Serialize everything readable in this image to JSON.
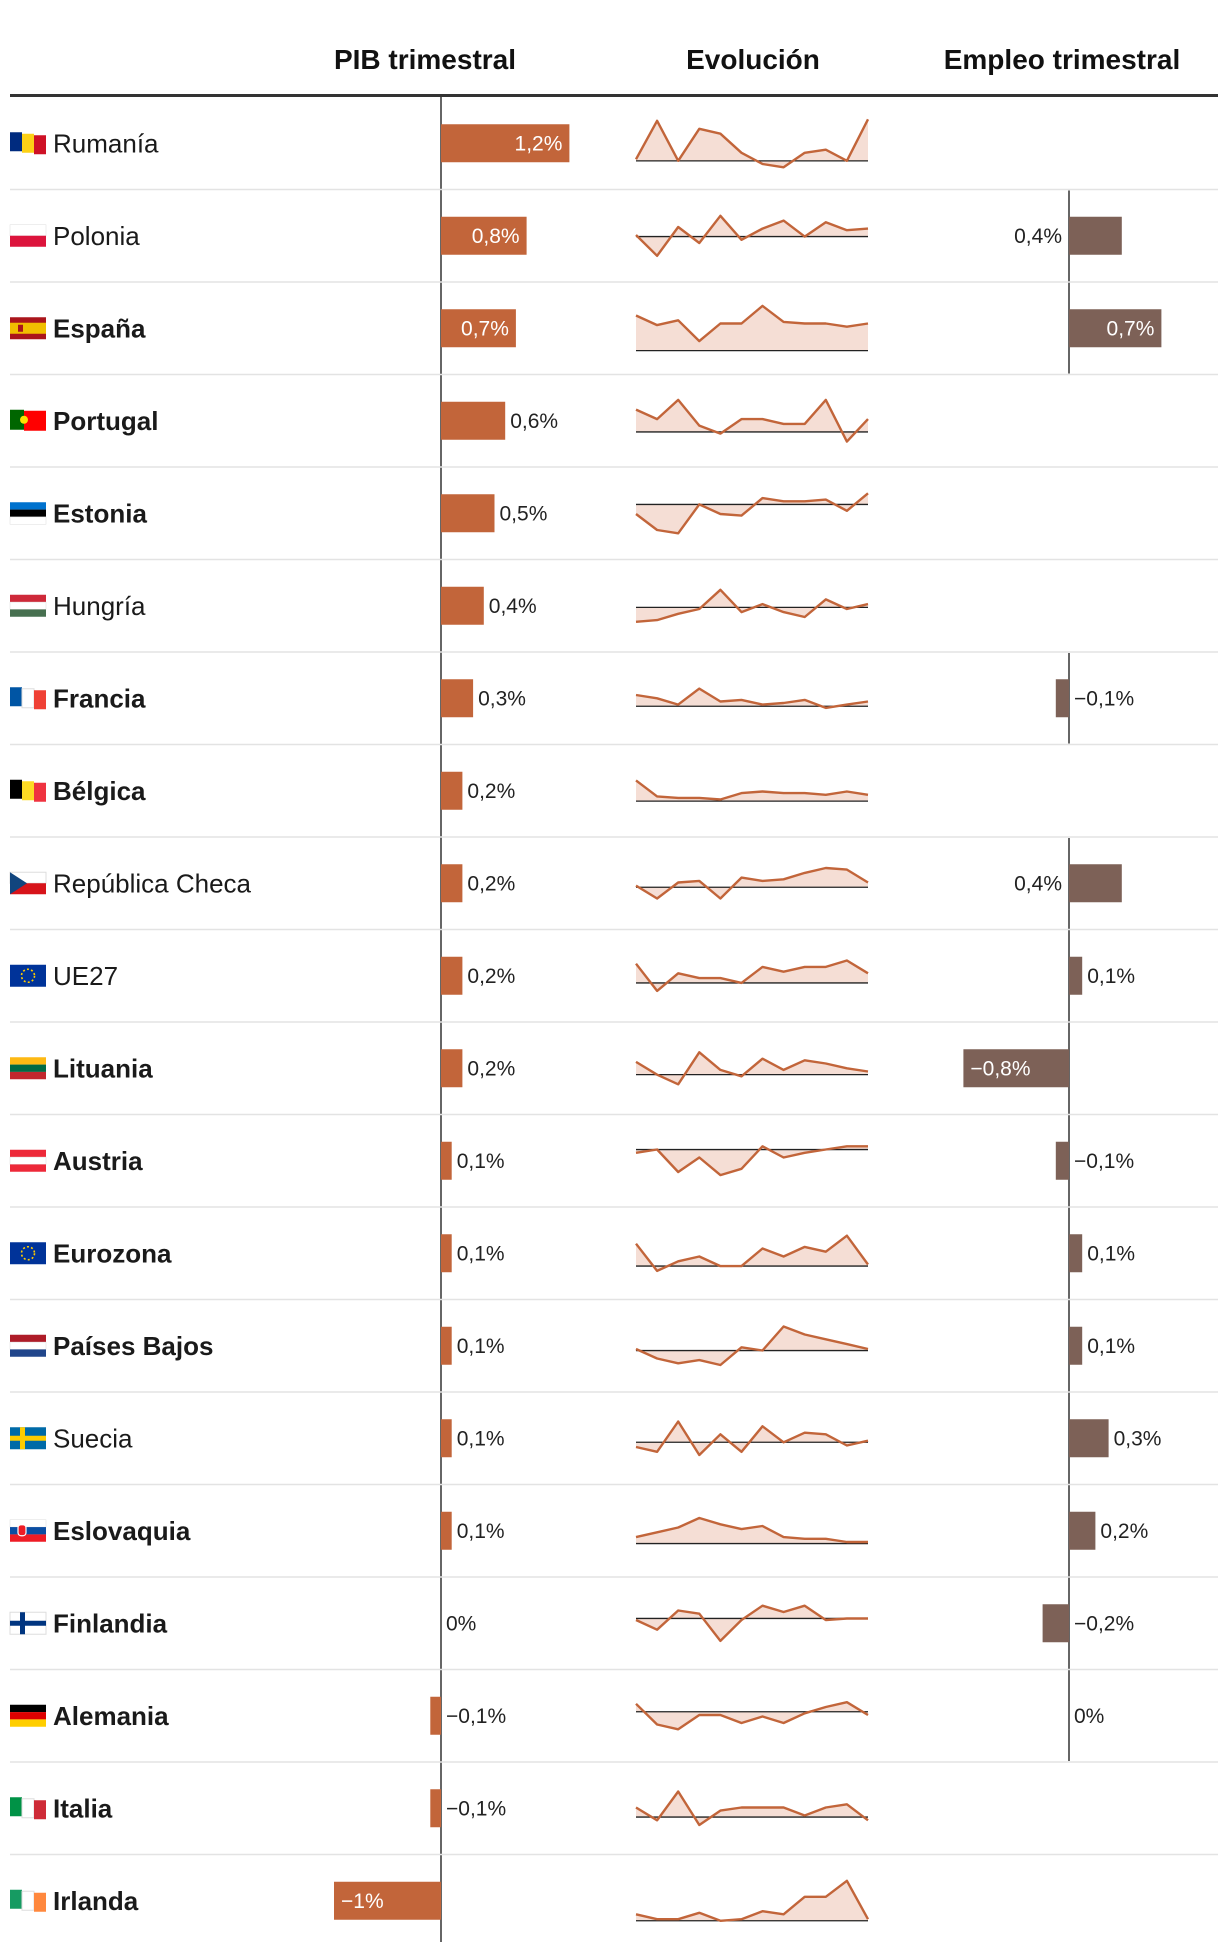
{
  "header": {
    "gdp": "PIB trimestral",
    "evolution": "Evolución",
    "employment": "Empleo trimestral"
  },
  "colors": {
    "gdp_bar": "#c2653a",
    "employment_bar": "#7d6157",
    "spark_line": "#c2653a",
    "spark_fill": "#f5ded5",
    "grid": "#e3e3e3",
    "axis": "#333333"
  },
  "chart_data": {
    "type": "table",
    "columns": [
      "PIB trimestral",
      "Evolución",
      "Empleo trimestral"
    ],
    "rows": [
      {
        "country": "Rumanía",
        "bold": false,
        "flag": [
          "#002B7F",
          "#FCD116",
          "#CE1126"
        ],
        "gdp": 1.2,
        "gdp_label": "1,2%",
        "emp": null,
        "emp_label": null,
        "spark": [
          0.1,
          2.5,
          0.0,
          2.0,
          1.7,
          0.5,
          -0.2,
          -0.4,
          0.5,
          0.7,
          0.0,
          2.6
        ]
      },
      {
        "country": "Polonia",
        "bold": false,
        "flag": [
          "#FFFFFF",
          "#DC143C"
        ],
        "gdp": 0.8,
        "gdp_label": "0,8%",
        "emp": 0.4,
        "emp_label": "0,4%",
        "spark": [
          0.1,
          -1.2,
          0.6,
          -0.4,
          1.3,
          -0.2,
          0.5,
          1.0,
          0.0,
          0.9,
          0.4,
          0.5
        ]
      },
      {
        "country": "España",
        "bold": true,
        "flag": [
          "#AA151B",
          "#F1BF00",
          "#AA151B"
        ],
        "gdp": 0.7,
        "gdp_label": "0,7%",
        "emp": 0.7,
        "emp_label": "0,7%",
        "spark": [
          2.2,
          1.6,
          1.9,
          0.6,
          1.7,
          1.7,
          2.8,
          1.8,
          1.7,
          1.7,
          1.5,
          1.7
        ]
      },
      {
        "country": "Portugal",
        "bold": true,
        "flag": [
          "#006600",
          "#FF0000"
        ],
        "gdp": 0.6,
        "gdp_label": "0,6%",
        "emp": null,
        "emp_label": null,
        "spark": [
          1.4,
          0.8,
          2.0,
          0.4,
          -0.1,
          0.8,
          0.8,
          0.5,
          0.5,
          2.0,
          -0.6,
          0.8
        ]
      },
      {
        "country": "Estonia",
        "bold": true,
        "flag": [
          "#0072CE",
          "#000000",
          "#FFFFFF"
        ],
        "gdp": 0.5,
        "gdp_label": "0,5%",
        "emp": null,
        "emp_label": null,
        "spark": [
          -0.6,
          -1.6,
          -1.8,
          0.0,
          -0.6,
          -0.7,
          0.4,
          0.2,
          0.2,
          0.3,
          -0.4,
          0.7
        ]
      },
      {
        "country": "Hungría",
        "bold": false,
        "flag": [
          "#CE2939",
          "#FFFFFF",
          "#477050"
        ],
        "gdp": 0.4,
        "gdp_label": "0,4%",
        "emp": null,
        "emp_label": null,
        "spark": [
          -0.9,
          -0.8,
          -0.4,
          -0.1,
          1.1,
          -0.3,
          0.2,
          -0.3,
          -0.6,
          0.5,
          -0.1,
          0.2
        ]
      },
      {
        "country": "Francia",
        "bold": true,
        "flag": [
          "#0055A4",
          "#FFFFFF",
          "#EF4135"
        ],
        "gdp": 0.3,
        "gdp_label": "0,3%",
        "emp": -0.1,
        "emp_label": "−0,1%",
        "spark": [
          0.7,
          0.5,
          0.1,
          1.1,
          0.3,
          0.4,
          0.1,
          0.2,
          0.4,
          -0.1,
          0.1,
          0.3
        ]
      },
      {
        "country": "Bélgica",
        "bold": true,
        "flag": [
          "#000000",
          "#FDDA24",
          "#EF3340"
        ],
        "gdp": 0.2,
        "gdp_label": "0,2%",
        "emp": null,
        "emp_label": null,
        "spark": [
          1.3,
          0.3,
          0.2,
          0.2,
          0.1,
          0.5,
          0.6,
          0.5,
          0.5,
          0.4,
          0.6,
          0.4
        ]
      },
      {
        "country": "República Checa",
        "bold": false,
        "flag": [
          "#FFFFFF",
          "#D7141A",
          "#11457E"
        ],
        "gdp": 0.2,
        "gdp_label": "0,2%",
        "emp": 0.4,
        "emp_label": "0,4%",
        "spark": [
          0.1,
          -0.7,
          0.3,
          0.4,
          -0.7,
          0.6,
          0.4,
          0.5,
          0.9,
          1.2,
          1.1,
          0.3
        ]
      },
      {
        "country": "UE27",
        "bold": false,
        "flag": [
          "#003399",
          "#FFCC00"
        ],
        "gdp": 0.2,
        "gdp_label": "0,2%",
        "emp": 0.1,
        "emp_label": "0,1%",
        "spark": [
          1.2,
          -0.5,
          0.6,
          0.3,
          0.3,
          0.0,
          1.0,
          0.7,
          1.0,
          1.0,
          1.4,
          0.6
        ]
      },
      {
        "country": "Lituania",
        "bold": true,
        "flag": [
          "#FDB913",
          "#006A44",
          "#C1272D"
        ],
        "gdp": 0.2,
        "gdp_label": "0,2%",
        "emp": -0.8,
        "emp_label": "−0,8%",
        "spark": [
          0.8,
          0.0,
          -0.6,
          1.4,
          0.3,
          -0.1,
          1.0,
          0.3,
          0.9,
          0.7,
          0.4,
          0.2
        ]
      },
      {
        "country": "Austria",
        "bold": true,
        "flag": [
          "#ED2939",
          "#FFFFFF",
          "#ED2939"
        ],
        "gdp": 0.1,
        "gdp_label": "0,1%",
        "emp": -0.1,
        "emp_label": "−0,1%",
        "spark": [
          -0.2,
          0.0,
          -1.4,
          -0.5,
          -1.6,
          -1.2,
          0.2,
          -0.5,
          -0.2,
          0.0,
          0.2,
          0.2
        ]
      },
      {
        "country": "Eurozona",
        "bold": true,
        "flag": [
          "#003399",
          "#FFCC00"
        ],
        "gdp": 0.1,
        "gdp_label": "0,1%",
        "emp": 0.1,
        "emp_label": "0,1%",
        "spark": [
          1.4,
          -0.3,
          0.3,
          0.6,
          0.0,
          0.0,
          1.1,
          0.6,
          1.2,
          0.9,
          1.9,
          0.1
        ]
      },
      {
        "country": "Países Bajos",
        "bold": true,
        "flag": [
          "#AE1C28",
          "#FFFFFF",
          "#21468B"
        ],
        "gdp": 0.1,
        "gdp_label": "0,1%",
        "emp": 0.1,
        "emp_label": "0,1%",
        "spark": [
          0.1,
          -0.5,
          -0.8,
          -0.6,
          -0.9,
          0.2,
          0.0,
          1.5,
          1.0,
          0.7,
          0.4,
          0.1
        ]
      },
      {
        "country": "Suecia",
        "bold": false,
        "flag": [
          "#006AA7",
          "#FECC00"
        ],
        "gdp": 0.1,
        "gdp_label": "0,1%",
        "emp": 0.3,
        "emp_label": "0,3%",
        "spark": [
          -0.3,
          -0.6,
          1.3,
          -0.8,
          0.5,
          -0.6,
          1.0,
          0.0,
          0.6,
          0.5,
          -0.2,
          0.1
        ]
      },
      {
        "country": "Eslovaquia",
        "bold": true,
        "flag": [
          "#FFFFFF",
          "#0B4EA2",
          "#EE1C25"
        ],
        "gdp": 0.1,
        "gdp_label": "0,1%",
        "emp": 0.2,
        "emp_label": "0,2%",
        "spark": [
          0.4,
          0.7,
          1.0,
          1.6,
          1.2,
          0.9,
          1.1,
          0.4,
          0.3,
          0.3,
          0.1,
          0.1
        ]
      },
      {
        "country": "Finlandia",
        "bold": true,
        "flag": [
          "#FFFFFF",
          "#003580"
        ],
        "gdp": 0.0,
        "gdp_label": "0%",
        "emp": -0.2,
        "emp_label": "−0,2%",
        "spark": [
          -0.1,
          -0.7,
          0.5,
          0.3,
          -1.4,
          -0.1,
          0.8,
          0.4,
          0.8,
          -0.1,
          0.0,
          0.0
        ]
      },
      {
        "country": "Alemania",
        "bold": true,
        "flag": [
          "#000000",
          "#DD0000",
          "#FFCE00"
        ],
        "gdp": -0.1,
        "gdp_label": "−0,1%",
        "emp": 0.0,
        "emp_label": "0%",
        "spark": [
          0.5,
          -0.8,
          -1.1,
          -0.2,
          -0.2,
          -0.7,
          -0.3,
          -0.7,
          -0.1,
          0.3,
          0.6,
          -0.2
        ]
      },
      {
        "country": "Italia",
        "bold": true,
        "flag": [
          "#009246",
          "#FFFFFF",
          "#CE2B37"
        ],
        "gdp": -0.1,
        "gdp_label": "−0,1%",
        "emp": null,
        "emp_label": null,
        "spark": [
          0.6,
          -0.2,
          1.6,
          -0.5,
          0.4,
          0.6,
          0.6,
          0.6,
          0.1,
          0.6,
          0.8,
          -0.2
        ]
      },
      {
        "country": "Irlanda",
        "bold": true,
        "flag": [
          "#169B62",
          "#FFFFFF",
          "#FF883E"
        ],
        "gdp": -1.0,
        "gdp_label": "−1%",
        "emp": null,
        "emp_label": null,
        "spark": [
          0.4,
          0.1,
          0.1,
          0.5,
          0.0,
          0.1,
          0.6,
          0.4,
          1.5,
          1.5,
          2.5,
          0.1
        ]
      }
    ]
  }
}
